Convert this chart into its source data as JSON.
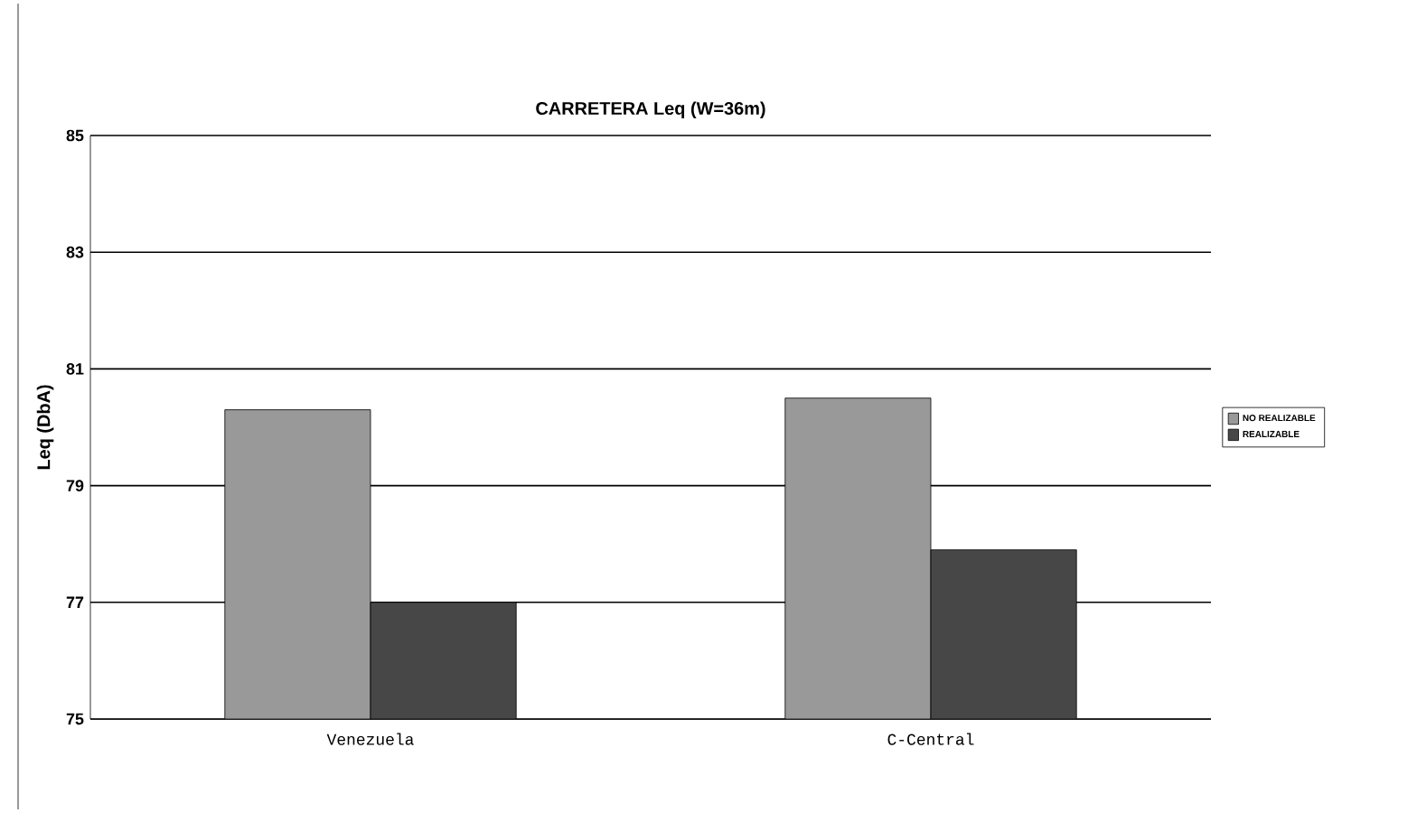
{
  "chart_data": {
    "type": "bar",
    "title": "CARRETERA Leq (W=36m)",
    "ylabel": "Leq (DbA)",
    "categories": [
      "Venezuela",
      "C-Central"
    ],
    "series": [
      {
        "name": "NO REALIZABLE",
        "color": "#999999",
        "values": [
          80.3,
          80.5
        ]
      },
      {
        "name": "REALIZABLE",
        "color": "#474747",
        "values": [
          77.0,
          77.9
        ]
      }
    ],
    "ylim": [
      75,
      85
    ],
    "yticks": [
      75,
      77,
      79,
      81,
      83,
      85
    ],
    "grid": "y",
    "legend": "right"
  }
}
